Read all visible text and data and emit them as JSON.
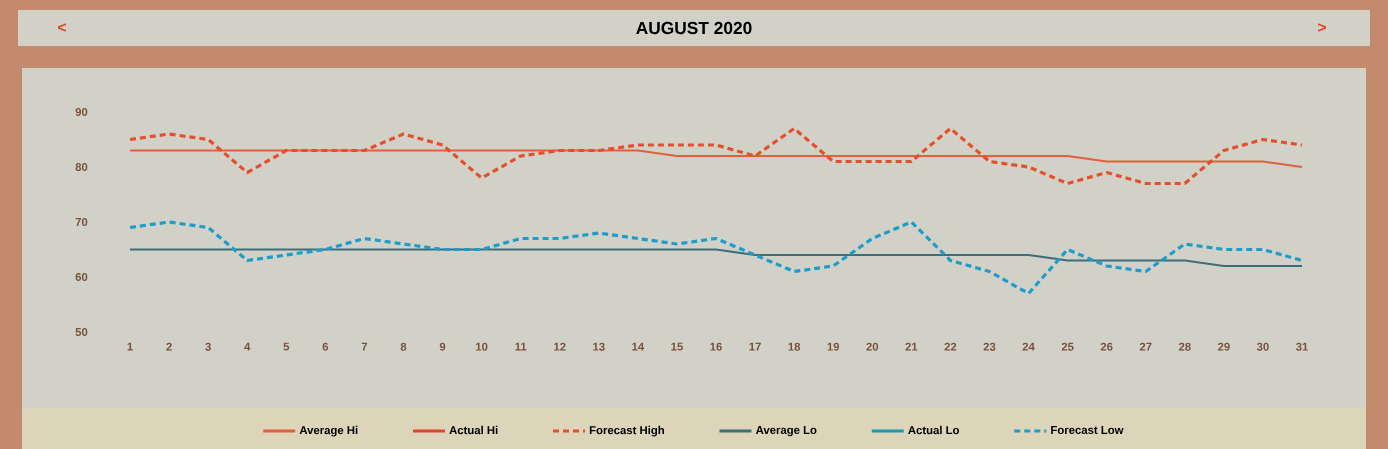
{
  "chart_data": {
    "type": "line",
    "title": "AUGUST 2020",
    "annotations": [
      "<",
      ">"
    ],
    "categories": [
      "1",
      "2",
      "3",
      "4",
      "5",
      "6",
      "7",
      "8",
      "9",
      "10",
      "11",
      "12",
      "13",
      "14",
      "15",
      "16",
      "17",
      "18",
      "19",
      "20",
      "21",
      "22",
      "23",
      "24",
      "25",
      "26",
      "27",
      "28",
      "29",
      "30",
      "31"
    ],
    "ylim": [
      50,
      90
    ],
    "yticks": [
      50,
      60,
      70,
      80,
      90
    ],
    "grid": false,
    "legend": "bottom",
    "marker": "none",
    "series": [
      {
        "name": "Average Hi",
        "color": "#e2603a",
        "line_style": "solid",
        "values": [
          83,
          83,
          83,
          83,
          83,
          83,
          83,
          83,
          83,
          83,
          83,
          83,
          83,
          83,
          82,
          82,
          82,
          82,
          82,
          82,
          82,
          82,
          82,
          82,
          82,
          81,
          81,
          81,
          81,
          81,
          80
        ]
      },
      {
        "name": "Actual Hi",
        "color": "#e0452a",
        "line_style": "solid",
        "values": [
          null,
          null,
          null,
          null,
          null,
          null,
          null,
          null,
          null,
          null,
          null,
          null,
          null,
          null,
          null,
          null,
          null,
          null,
          null,
          null,
          null,
          null,
          null,
          null,
          null,
          null,
          null,
          null,
          null,
          null,
          null
        ]
      },
      {
        "name": "Forecast High",
        "color": "#e5502c",
        "line_style": "dotted",
        "values": [
          85,
          86,
          85,
          79,
          83,
          83,
          83,
          86,
          84,
          78,
          82,
          83,
          83,
          84,
          84,
          84,
          82,
          87,
          81,
          81,
          81,
          87,
          81,
          80,
          77,
          79,
          77,
          77,
          83,
          85,
          84
        ]
      },
      {
        "name": "Average Lo",
        "color": "#3d6f78",
        "line_style": "solid",
        "values": [
          65,
          65,
          65,
          65,
          65,
          65,
          65,
          65,
          65,
          65,
          65,
          65,
          65,
          65,
          65,
          65,
          64,
          64,
          64,
          64,
          64,
          64,
          64,
          64,
          63,
          63,
          63,
          63,
          62,
          62,
          62
        ]
      },
      {
        "name": "Actual Lo",
        "color": "#1a9ab2",
        "line_style": "solid",
        "values": [
          null,
          null,
          null,
          null,
          null,
          null,
          null,
          null,
          null,
          null,
          null,
          null,
          null,
          null,
          null,
          null,
          null,
          null,
          null,
          null,
          null,
          null,
          null,
          null,
          null,
          null,
          null,
          null,
          null,
          null,
          null
        ]
      },
      {
        "name": "Forecast Low",
        "color": "#1e9ccb",
        "line_style": "dotted",
        "values": [
          69,
          70,
          69,
          63,
          64,
          65,
          67,
          66,
          65,
          65,
          67,
          67,
          68,
          67,
          66,
          67,
          64,
          61,
          62,
          67,
          70,
          63,
          61,
          57,
          65,
          62,
          61,
          66,
          65,
          65,
          63
        ]
      }
    ]
  }
}
